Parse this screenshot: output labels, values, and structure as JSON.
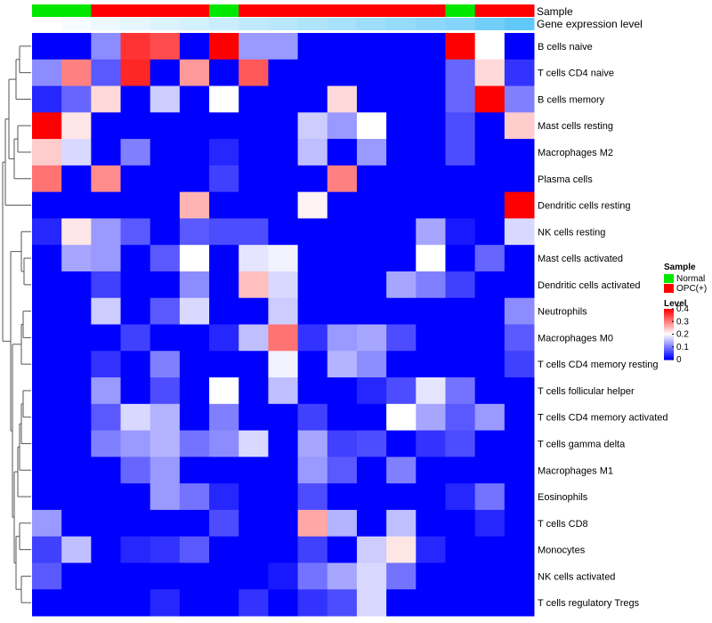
{
  "chart_data": {
    "type": "heatmap",
    "annotation_tracks": [
      {
        "name": "Sample",
        "values": [
          "Normal",
          "Normal",
          "OPC(+)",
          "OPC(+)",
          "OPC(+)",
          "OPC(+)",
          "Normal",
          "OPC(+)",
          "OPC(+)",
          "OPC(+)",
          "OPC(+)",
          "OPC(+)",
          "OPC(+)",
          "OPC(+)",
          "Normal",
          "OPC(+)",
          "OPC(+)"
        ]
      },
      {
        "name": "Gene expression level",
        "values": [
          0.0,
          0.05,
          0.1,
          0.15,
          0.2,
          0.25,
          0.3,
          0.35,
          0.4,
          0.45,
          0.5,
          0.55,
          0.6,
          0.65,
          0.7,
          0.8,
          0.9
        ]
      }
    ],
    "rows": [
      "B cells naive",
      "T cells CD4 naive",
      "B cells memory",
      "Mast cells resting",
      "Macrophages M2",
      "Plasma cells",
      "Dendritic cells resting",
      "NK cells resting",
      "Mast cells activated",
      "Dendritic cells activated",
      "Neutrophils",
      "Macrophages M0",
      "T cells CD4 memory resting",
      "T cells follicular helper",
      "T cells CD4 memory activated",
      "T cells gamma delta",
      "Macrophages M1",
      "Eosinophils",
      "T cells CD8",
      "Monocytes",
      "NK cells activated",
      "T cells regulatory  Tregs"
    ],
    "values": [
      [
        0,
        0,
        0.11,
        0.36,
        0.34,
        0,
        0.4,
        0.12,
        0.12,
        0,
        0,
        0,
        0,
        0,
        0.4,
        0.2,
        0
      ],
      [
        0.11,
        0.3,
        0.07,
        0.37,
        0,
        0.28,
        0,
        0.33,
        0,
        0,
        0,
        0,
        0,
        0,
        0.08,
        0.23,
        0.04
      ],
      [
        0.03,
        0.08,
        0.23,
        0,
        0.16,
        0,
        0.2,
        0,
        0,
        0,
        0.23,
        0,
        0,
        0,
        0.08,
        0.4,
        0.1
      ],
      [
        0.4,
        0.22,
        0,
        0,
        0,
        0,
        0,
        0,
        0,
        0.16,
        0.12,
        0.2,
        0,
        0,
        0.06,
        0,
        0.24
      ],
      [
        0.24,
        0.17,
        0,
        0.1,
        0,
        0,
        0.03,
        0,
        0,
        0.15,
        0,
        0.12,
        0,
        0,
        0.06,
        0,
        0
      ],
      [
        0.31,
        0,
        0.29,
        0,
        0,
        0,
        0.05,
        0,
        0,
        0,
        0.3,
        0,
        0,
        0,
        0,
        0,
        0
      ],
      [
        0,
        0,
        0,
        0,
        0,
        0.26,
        0,
        0,
        0,
        0.21,
        0,
        0,
        0,
        0,
        0,
        0,
        0.4
      ],
      [
        0.03,
        0.22,
        0.12,
        0.07,
        0,
        0.07,
        0.06,
        0.06,
        0,
        0,
        0,
        0,
        0,
        0.13,
        0.02,
        0,
        0.17
      ],
      [
        0,
        0.13,
        0.12,
        0,
        0.07,
        0.2,
        0,
        0.18,
        0.19,
        0,
        0,
        0,
        0,
        0.2,
        0,
        0.08,
        0
      ],
      [
        0,
        0,
        0.05,
        0,
        0,
        0.11,
        0,
        0.25,
        0.17,
        0,
        0,
        0,
        0.13,
        0.1,
        0.05,
        0,
        0
      ],
      [
        0,
        0,
        0.16,
        0,
        0.07,
        0.17,
        0,
        0,
        0.16,
        0,
        0,
        0,
        0,
        0,
        0,
        0,
        0.11
      ],
      [
        0,
        0,
        0,
        0.05,
        0,
        0,
        0.03,
        0.15,
        0.31,
        0.04,
        0.12,
        0.13,
        0.06,
        0,
        0,
        0,
        0.07
      ],
      [
        0,
        0,
        0.04,
        0,
        0.1,
        0,
        0,
        0,
        0.19,
        0,
        0.14,
        0.11,
        0,
        0,
        0,
        0,
        0.05
      ],
      [
        0,
        0,
        0.12,
        0,
        0.06,
        0,
        0.2,
        0,
        0.15,
        0,
        0,
        0.03,
        0.06,
        0.18,
        0.09,
        0,
        0
      ],
      [
        0,
        0,
        0.07,
        0.17,
        0.14,
        0,
        0.1,
        0,
        0,
        0.05,
        0,
        0,
        0.2,
        0.13,
        0.07,
        0.12,
        0
      ],
      [
        0,
        0,
        0.1,
        0.12,
        0.14,
        0.09,
        0.11,
        0.17,
        0,
        0.13,
        0.05,
        0.06,
        0,
        0.04,
        0.06,
        0,
        0
      ],
      [
        0,
        0,
        0,
        0.08,
        0.12,
        0,
        0,
        0,
        0,
        0.12,
        0.07,
        0,
        0.1,
        0,
        0,
        0,
        0
      ],
      [
        0,
        0,
        0,
        0,
        0.12,
        0.09,
        0.03,
        0,
        0,
        0.06,
        0,
        0,
        0,
        0,
        0.03,
        0.09,
        0
      ],
      [
        0.12,
        0,
        0,
        0,
        0,
        0,
        0.06,
        0,
        0,
        0.27,
        0.14,
        0,
        0.15,
        0,
        0,
        0.03,
        0
      ],
      [
        0.05,
        0.15,
        0,
        0.03,
        0.04,
        0.07,
        0,
        0,
        0,
        0.05,
        0,
        0.16,
        0.22,
        0.03,
        0,
        0,
        0
      ],
      [
        0.07,
        0,
        0,
        0,
        0,
        0,
        0,
        0,
        0.02,
        0.09,
        0.13,
        0.17,
        0.09,
        0,
        0,
        0,
        0
      ],
      [
        0,
        0,
        0,
        0,
        0.03,
        0,
        0,
        0.04,
        0,
        0.04,
        0.06,
        0.17,
        0,
        0,
        0,
        0,
        0
      ]
    ],
    "legend": {
      "sample_title": "Sample",
      "sample_items": [
        {
          "label": "Normal",
          "color": "#00e800"
        },
        {
          "label": "OPC(+)",
          "color": "#ff0000"
        }
      ],
      "level_title": "Level",
      "level_ticks": [
        "0.4",
        "0.3",
        "0.2",
        "0.1",
        "0"
      ],
      "level_tick_values": [
        0.4,
        0.3,
        0.2,
        0.1,
        0.0
      ],
      "placement": "right"
    },
    "color_scale": {
      "low": "#0000ff",
      "mid": "#ffffff",
      "high": "#ff0000",
      "domain": [
        0,
        0.4
      ]
    },
    "track_colors": {
      "expression_low": "#ffffff",
      "expression_high": "#4fc3f7"
    }
  }
}
